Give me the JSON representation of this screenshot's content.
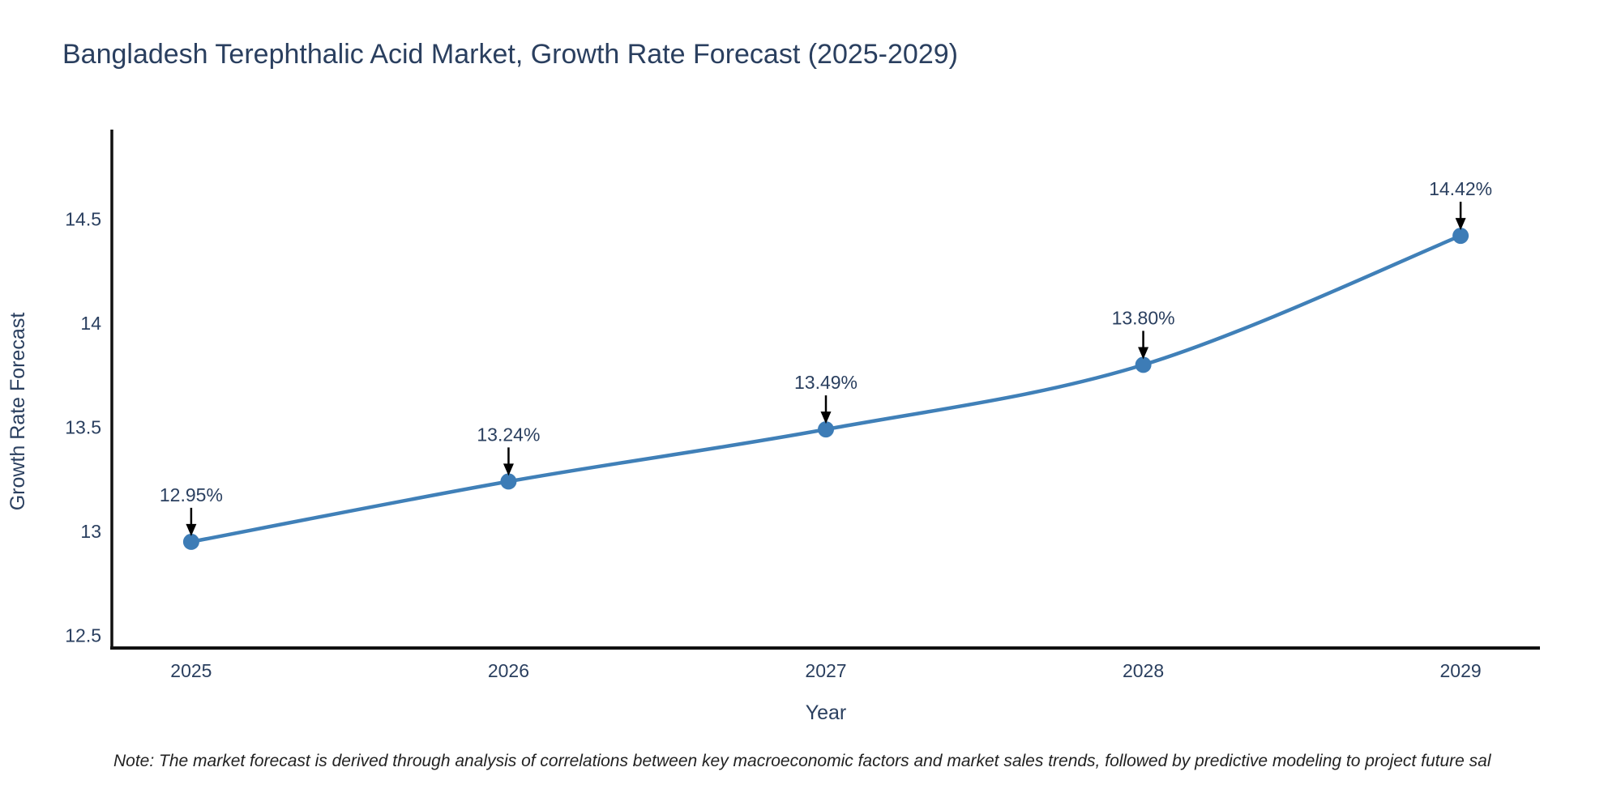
{
  "title": "Bangladesh Terephthalic Acid Market, Growth Rate Forecast (2025-2029)",
  "footnote": "Note: The market forecast is derived through analysis of correlations between key macroeconomic factors and market sales trends, followed by predictive modeling to project future sal",
  "chart_data": {
    "type": "line",
    "title": "Bangladesh Terephthalic Acid Market, Growth Rate Forecast (2025-2029)",
    "xlabel": "Year",
    "ylabel": "Growth Rate Forecast",
    "x": [
      2025,
      2026,
      2027,
      2028,
      2029
    ],
    "series": [
      {
        "name": "Growth Rate Forecast",
        "values": [
          12.95,
          13.24,
          13.49,
          13.8,
          14.42
        ]
      }
    ],
    "point_labels": [
      "12.95%",
      "13.24%",
      "13.49%",
      "13.80%",
      "14.42%"
    ],
    "xticks": [
      2025,
      2026,
      2027,
      2028,
      2029
    ],
    "xtick_labels": [
      "2025",
      "2026",
      "2027",
      "2028",
      "2029"
    ],
    "yticks": [
      12.5,
      13,
      13.5,
      14,
      14.5
    ],
    "ytick_labels": [
      "12.5",
      "13",
      "13.5",
      "14",
      "14.5"
    ],
    "xlim": [
      2024.75,
      2029.25
    ],
    "ylim": [
      12.44,
      14.93
    ],
    "grid": false,
    "legend": "none",
    "line_shape": "spline",
    "colors": {
      "line": "#4080b8",
      "marker": "#3d7cb6",
      "axis": "#111111",
      "text": "#2a3f5f",
      "annotation_arrow": "#000000"
    }
  }
}
